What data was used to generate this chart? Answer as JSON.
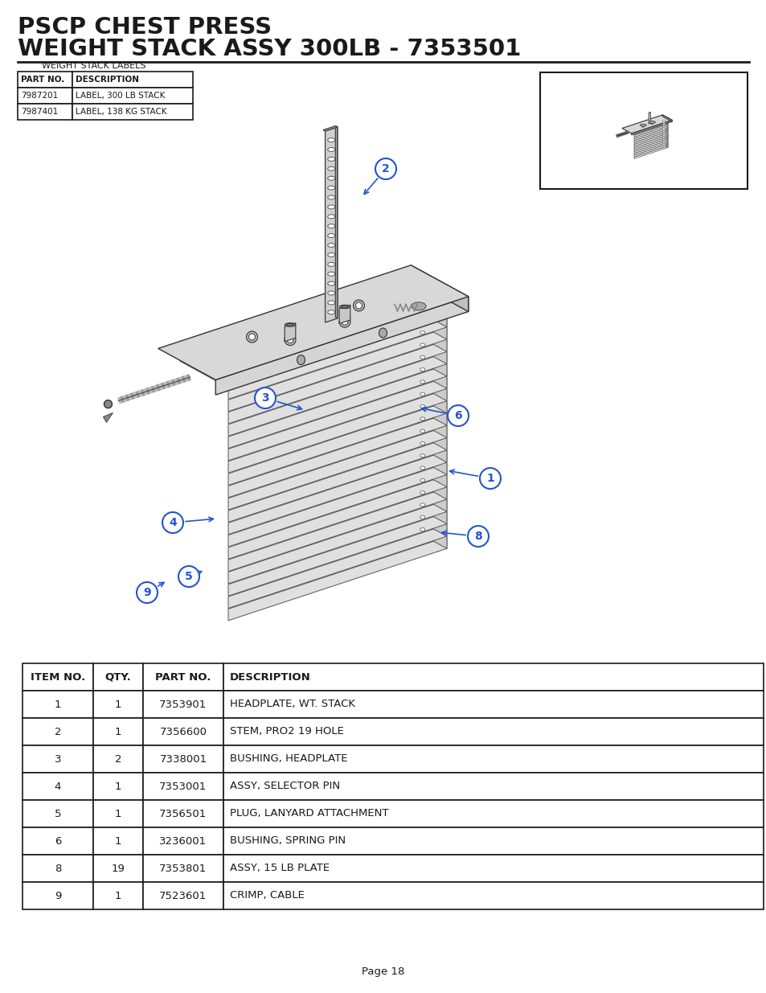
{
  "title_line1": "PSCP CHEST PRESS",
  "title_line2": "WEIGHT STACK ASSY 300LB - 7353501",
  "bg_color": "#ffffff",
  "title_color": "#1a1a1a",
  "labels_table_title": "WEIGHT STACK LABELS",
  "labels_table_headers": [
    "PART NO.",
    "DESCRIPTION"
  ],
  "labels_table_rows": [
    [
      "7987201",
      "LABEL, 300 LB STACK"
    ],
    [
      "7987401",
      "LABEL, 138 KG STACK"
    ]
  ],
  "main_table_headers": [
    "ITEM NO.",
    "QTY.",
    "PART NO.",
    "DESCRIPTION"
  ],
  "main_table_rows": [
    [
      "1",
      "1",
      "7353901",
      "HEADPLATE, WT. STACK"
    ],
    [
      "2",
      "1",
      "7356600",
      "STEM, PRO2 19 HOLE"
    ],
    [
      "3",
      "2",
      "7338001",
      "BUSHING, HEADPLATE"
    ],
    [
      "4",
      "1",
      "7353001",
      "ASSY, SELECTOR PIN"
    ],
    [
      "5",
      "1",
      "7356501",
      "PLUG, LANYARD ATTACHMENT"
    ],
    [
      "6",
      "1",
      "3236001",
      "BUSHING, SPRING PIN"
    ],
    [
      "8",
      "19",
      "7353801",
      "ASSY, 15 LB PLATE"
    ],
    [
      "9",
      "1",
      "7523601",
      "CRIMP, CABLE"
    ]
  ],
  "callout_color": "#2255cc",
  "page_label": "Page 18"
}
